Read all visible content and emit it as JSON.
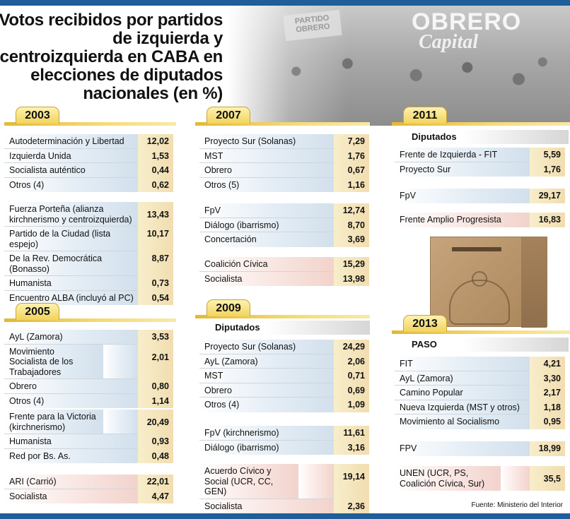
{
  "title": "Votos recibidos por partidos de izquierda y centroizquierda en CABA en elecciones de diputados nacionales (en %)",
  "photo": {
    "banner_line1": "OBRERO",
    "banner_line2": "Capital",
    "sign_text": "PARTIDO OBRERO"
  },
  "source": "Fuente: Ministerio del Interior",
  "colors": {
    "top_bar": "#1f5e9a",
    "year_tab": "#f2d35c",
    "value_cell": "#f6e6b3",
    "group_blue": "#d2e0ec",
    "group_pink": "#f2d3cc"
  },
  "y2003": {
    "year": "2003",
    "g1": [
      {
        "label": "Autodeterminación y Libertad",
        "value": "12,02"
      },
      {
        "label": "Izquierda Unida",
        "value": "1,53"
      },
      {
        "label": "Socialista auténtico",
        "value": "0,44"
      },
      {
        "label": "Otros (4)",
        "value": "0,62"
      }
    ],
    "g2": [
      {
        "label": "Fuerza Porteña (alianza kirchnerismo y centroizquierda)",
        "value": "13,43"
      },
      {
        "label": "Partido de la Ciudad (lista espejo)",
        "value": "10,17"
      },
      {
        "label": "De la Rev. Democrática (Bonasso)",
        "value": "8,87"
      },
      {
        "label": "Humanista",
        "value": "0,73"
      },
      {
        "label": "Encuentro ALBA (incluyó al PC)",
        "value": "0,54"
      }
    ]
  },
  "y2005": {
    "year": "2005",
    "g1": [
      {
        "label": "AyL (Zamora)",
        "value": "3,53"
      },
      {
        "label": "Movimiento Socialista de los Trabajadores",
        "value": "2,01"
      },
      {
        "label": "Obrero",
        "value": "0,80"
      },
      {
        "label": "Otros (4)",
        "value": "1,14"
      }
    ],
    "g2": [
      {
        "label": "Frente para la Victoria (kirchnerismo)",
        "value": "20,49"
      },
      {
        "label": "Humanista",
        "value": "0,93"
      },
      {
        "label": "Red por Bs. As.",
        "value": "0,48"
      }
    ],
    "g3": [
      {
        "label": "ARI (Carrió)",
        "value": "22,01"
      },
      {
        "label": "Socialista",
        "value": "4,47"
      }
    ]
  },
  "y2007": {
    "year": "2007",
    "g1": [
      {
        "label": "Proyecto Sur (Solanas)",
        "value": "7,29"
      },
      {
        "label": "MST",
        "value": "1,76"
      },
      {
        "label": "Obrero",
        "value": "0,67"
      },
      {
        "label": "Otros (5)",
        "value": "1,16"
      }
    ],
    "g2": [
      {
        "label": "FpV",
        "value": "12,74"
      },
      {
        "label": "Diálogo (ibarrismo)",
        "value": "8,70"
      },
      {
        "label": "Concertación",
        "value": "3,69"
      }
    ],
    "g3": [
      {
        "label": "Coalición Cívica",
        "value": "15,29"
      },
      {
        "label": "Socialista",
        "value": "13,98"
      }
    ]
  },
  "y2009": {
    "year": "2009",
    "subtitle": "Diputados",
    "g1": [
      {
        "label": "Proyecto Sur (Solanas)",
        "value": "24,29"
      },
      {
        "label": "AyL (Zamora)",
        "value": "2,06"
      },
      {
        "label": "MST",
        "value": "0,71"
      },
      {
        "label": "Obrero",
        "value": "0,69"
      },
      {
        "label": "Otros (4)",
        "value": "1,09"
      }
    ],
    "g2": [
      {
        "label": "FpV (kirchnerismo)",
        "value": "11,61"
      },
      {
        "label": "Diálogo (ibarrismo)",
        "value": "3,16"
      }
    ],
    "g3": [
      {
        "label": "Acuerdo Cívico y Social (UCR, CC, GEN)",
        "value": "19,14"
      },
      {
        "label": "Socialista",
        "value": "2,36"
      }
    ]
  },
  "y2011": {
    "year": "2011",
    "subtitle": "Diputados",
    "g1": [
      {
        "label": "Frente de Izquierda - FIT",
        "value": "5,59"
      },
      {
        "label": "Proyecto Sur",
        "value": "1,76"
      }
    ],
    "g2": [
      {
        "label": "FpV",
        "value": "29,17"
      }
    ],
    "g3": [
      {
        "label": "Frente Amplio Progresista",
        "value": "16,83"
      }
    ]
  },
  "y2013": {
    "year": "2013",
    "subtitle": "PASO",
    "g1": [
      {
        "label": "FIT",
        "value": "4,21"
      },
      {
        "label": "AyL (Zamora)",
        "value": "3,30"
      },
      {
        "label": "Camino Popular",
        "value": "2,17"
      },
      {
        "label": "Nueva Izquierda (MST y otros)",
        "value": "1,18"
      },
      {
        "label": "Movimiento al Socialismo",
        "value": "0,95"
      }
    ],
    "g2": [
      {
        "label": "FPV",
        "value": "18,99"
      }
    ],
    "g3": [
      {
        "label": "UNEN (UCR, PS, Coalición Cívica, Sur)",
        "value": "35,5"
      }
    ]
  }
}
